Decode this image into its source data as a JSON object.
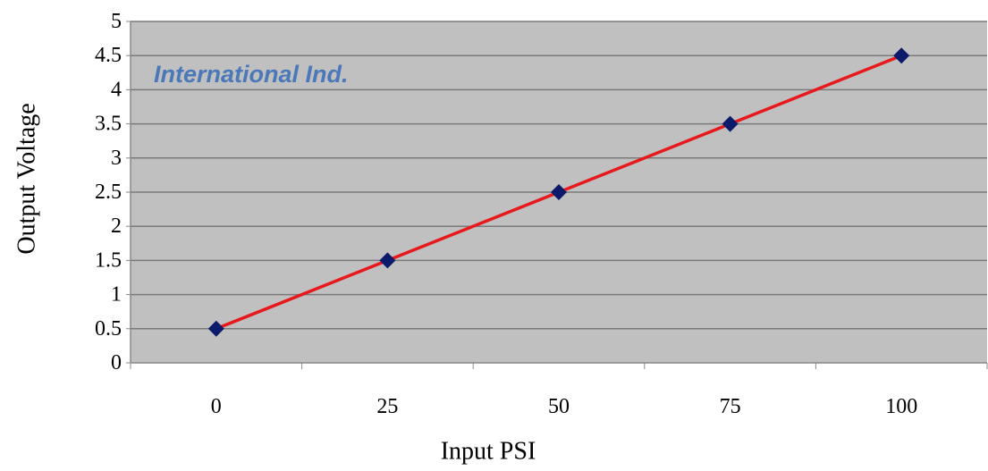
{
  "chart_data": {
    "type": "line",
    "xlabel": "Input PSI",
    "ylabel": "Output Voltage",
    "x_tick_labels": [
      "0",
      "25",
      "50",
      "75",
      "100"
    ],
    "y_tick_labels": [
      "0",
      "0.5",
      "1",
      "1.5",
      "2",
      "2.5",
      "3",
      "3.5",
      "4",
      "4.5",
      "5"
    ],
    "ylim": [
      0,
      5
    ],
    "grid": "horizontal",
    "legend": "none",
    "series": [
      {
        "x": [
          0,
          25,
          50,
          75,
          100
        ],
        "values": [
          0.5,
          1.5,
          2.5,
          3.5,
          4.5
        ],
        "line_color": "#e8191c",
        "marker": "diamond",
        "marker_color": "#0b1a6b"
      }
    ],
    "annotation": "International Ind.",
    "colors": {
      "plot_background": "#c0c0c0",
      "gridline": "#7a7a7a",
      "axis": "#888888",
      "annotation": "#4a78b8"
    }
  }
}
